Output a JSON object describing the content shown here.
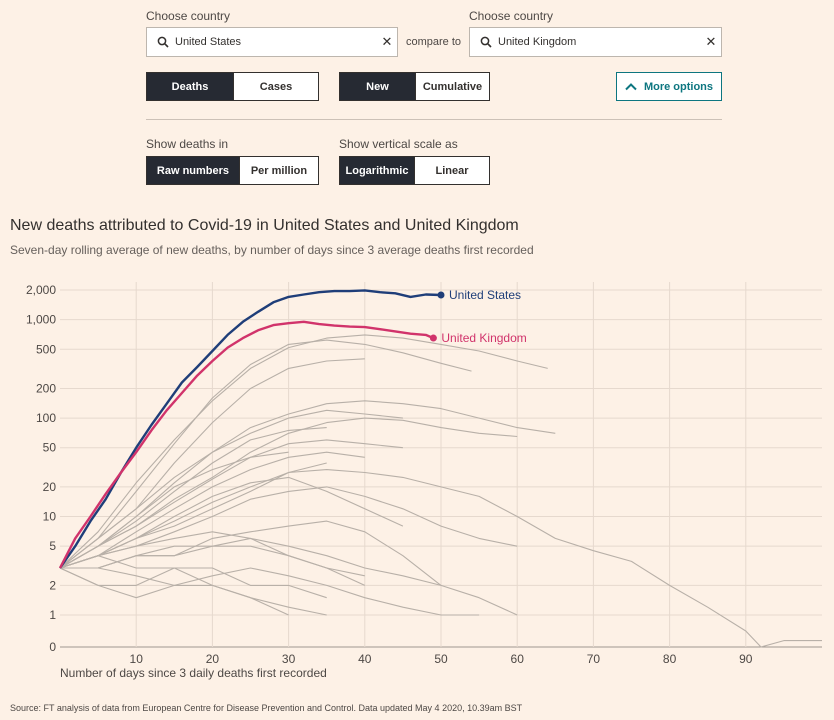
{
  "controls": {
    "choose_country_label_1": "Choose country",
    "choose_country_label_2": "Choose country",
    "country_1": "United States",
    "country_2": "United Kingdom",
    "compare_to": "compare to",
    "clear_symbol": "✕",
    "metric": {
      "options": [
        "Deaths",
        "Cases"
      ],
      "selected": "Deaths"
    },
    "mode": {
      "options": [
        "New",
        "Cumulative"
      ],
      "selected": "New"
    },
    "more_options": "More options",
    "show_deaths_in_label": "Show deaths in",
    "deaths_unit": {
      "options": [
        "Raw numbers",
        "Per million"
      ],
      "selected": "Raw numbers"
    },
    "vertical_scale_label": "Show vertical scale as",
    "scale": {
      "options": [
        "Logarithmic",
        "Linear"
      ],
      "selected": "Logarithmic"
    }
  },
  "chart_data": {
    "type": "line",
    "title": "New deaths attributed to Covid-19 in United States and United Kingdom",
    "subtitle": "Seven-day rolling average of new deaths, by number of days since 3 average deaths first recorded",
    "xlabel": "Number of days since 3 daily deaths first recorded",
    "ylabel": "",
    "xlim": [
      0,
      100
    ],
    "x_ticks": [
      10,
      20,
      30,
      40,
      50,
      60,
      70,
      80,
      90
    ],
    "y_scale": "log",
    "y_ticks": [
      {
        "value": 0,
        "label": "0"
      },
      {
        "value": 1,
        "label": "1"
      },
      {
        "value": 2,
        "label": "2"
      },
      {
        "value": 5,
        "label": "5"
      },
      {
        "value": 10,
        "label": "10"
      },
      {
        "value": 20,
        "label": "20"
      },
      {
        "value": 50,
        "label": "50"
      },
      {
        "value": 100,
        "label": "100"
      },
      {
        "value": 200,
        "label": "200"
      },
      {
        "value": 500,
        "label": "500"
      },
      {
        "value": 1000,
        "label": "1,000"
      },
      {
        "value": 2000,
        "label": "2,000"
      }
    ],
    "grid": true,
    "highlight_series": [
      {
        "name": "United States",
        "color": "#1f3e79",
        "x": [
          0,
          2,
          4,
          6,
          8,
          10,
          12,
          14,
          16,
          18,
          20,
          22,
          24,
          26,
          28,
          30,
          32,
          34,
          36,
          38,
          40,
          42,
          44,
          46,
          48,
          50
        ],
        "y": [
          3,
          5,
          9,
          15,
          28,
          50,
          85,
          140,
          230,
          330,
          480,
          700,
          950,
          1200,
          1500,
          1700,
          1800,
          1900,
          1950,
          1950,
          1980,
          1900,
          1850,
          1700,
          1800,
          1780
        ]
      },
      {
        "name": "United Kingdom",
        "color": "#d1336b",
        "x": [
          0,
          2,
          4,
          6,
          8,
          10,
          12,
          14,
          16,
          18,
          20,
          22,
          24,
          26,
          28,
          30,
          32,
          34,
          36,
          38,
          40,
          42,
          44,
          46,
          48,
          49
        ],
        "y": [
          3,
          6,
          10,
          17,
          28,
          45,
          75,
          120,
          180,
          270,
          380,
          520,
          650,
          780,
          880,
          920,
          950,
          900,
          870,
          850,
          840,
          800,
          760,
          720,
          700,
          650
        ]
      }
    ],
    "background_series_color": "#b8b0a8",
    "background_series": [
      {
        "x": [
          0,
          5,
          10,
          15,
          20,
          25,
          30,
          35,
          40,
          45,
          50,
          55,
          60,
          64
        ],
        "y": [
          3,
          7,
          22,
          60,
          150,
          320,
          520,
          650,
          700,
          650,
          560,
          480,
          380,
          320
        ]
      },
      {
        "x": [
          0,
          5,
          10,
          15,
          20,
          25,
          30,
          35,
          40,
          45,
          50,
          54
        ],
        "y": [
          3,
          6,
          18,
          55,
          160,
          350,
          560,
          620,
          560,
          460,
          360,
          300
        ]
      },
      {
        "x": [
          0,
          5,
          10,
          15,
          20,
          25,
          30,
          35,
          40,
          45,
          50,
          55,
          60,
          65
        ],
        "y": [
          3,
          5,
          10,
          22,
          45,
          80,
          110,
          140,
          150,
          140,
          125,
          100,
          80,
          70
        ]
      },
      {
        "x": [
          0,
          5,
          10,
          15,
          20,
          25,
          30,
          35,
          40,
          45,
          50,
          55,
          60
        ],
        "y": [
          3,
          5,
          8,
          15,
          25,
          45,
          70,
          90,
          100,
          95,
          80,
          70,
          65
        ]
      },
      {
        "x": [
          0,
          5,
          10,
          15,
          20,
          25,
          30,
          35,
          40
        ],
        "y": [
          3,
          6,
          12,
          35,
          90,
          200,
          320,
          380,
          400
        ]
      },
      {
        "x": [
          0,
          5,
          10,
          15,
          20,
          25,
          30,
          35,
          40,
          45,
          50,
          55,
          60,
          65,
          70,
          75,
          80,
          85,
          90,
          92,
          95,
          100
        ],
        "y": [
          3,
          4,
          6,
          8,
          12,
          18,
          28,
          30,
          28,
          25,
          20,
          16,
          10,
          6,
          4.5,
          3.5,
          2,
          1.2,
          0.5,
          0,
          0.2,
          0.2
        ]
      },
      {
        "x": [
          0,
          5,
          10,
          15,
          20,
          25,
          30,
          35,
          40,
          45,
          50,
          55,
          60
        ],
        "y": [
          3,
          4,
          5,
          7,
          10,
          15,
          18,
          20,
          16,
          12,
          8,
          6,
          5
        ]
      },
      {
        "x": [
          0,
          5,
          10,
          15,
          20,
          25,
          30,
          35,
          40,
          45,
          50,
          55,
          60
        ],
        "y": [
          3,
          3,
          4,
          4,
          6,
          7,
          8,
          9,
          7,
          4,
          2,
          1.5,
          1
        ]
      },
      {
        "x": [
          0,
          5,
          10,
          15,
          20,
          25,
          30,
          35,
          40,
          45
        ],
        "y": [
          3,
          4,
          6,
          10,
          16,
          22,
          25,
          18,
          12,
          8
        ]
      },
      {
        "x": [
          0,
          5,
          10,
          15,
          20,
          25,
          30,
          35,
          40,
          45,
          50
        ],
        "y": [
          3,
          3,
          4,
          5,
          5,
          6,
          5,
          4,
          3,
          2.5,
          2
        ]
      },
      {
        "x": [
          0,
          5,
          10,
          15,
          20,
          25,
          30,
          35,
          40,
          45,
          50,
          55
        ],
        "y": [
          3,
          2,
          1.5,
          2,
          2.5,
          3,
          2.5,
          2,
          1.5,
          1.2,
          1,
          1
        ]
      },
      {
        "x": [
          0,
          5,
          10,
          15,
          20,
          25,
          30,
          35,
          40
        ],
        "y": [
          3,
          4,
          5,
          6,
          7,
          6,
          4,
          3,
          2
        ]
      },
      {
        "x": [
          0,
          5,
          10,
          15,
          20,
          25,
          30,
          35
        ],
        "y": [
          3,
          5,
          9,
          18,
          35,
          60,
          75,
          80
        ]
      },
      {
        "x": [
          0,
          5,
          10,
          15,
          20,
          25,
          30,
          35,
          40,
          45
        ],
        "y": [
          3,
          5,
          8,
          14,
          24,
          40,
          55,
          60,
          55,
          50
        ]
      },
      {
        "x": [
          0,
          5,
          10,
          15,
          20,
          25,
          30,
          35
        ],
        "y": [
          3,
          4,
          6,
          9,
          14,
          20,
          28,
          35
        ]
      },
      {
        "x": [
          0,
          5,
          10,
          15,
          20,
          25,
          30,
          35
        ],
        "y": [
          3,
          3,
          2.5,
          2,
          2,
          1.5,
          1.2,
          1
        ]
      },
      {
        "x": [
          0,
          5,
          10,
          15,
          20,
          25,
          30,
          35,
          40
        ],
        "y": [
          3,
          4,
          7,
          12,
          20,
          30,
          40,
          45,
          40
        ]
      },
      {
        "x": [
          0,
          5,
          10,
          15,
          20,
          25,
          30,
          35,
          40
        ],
        "y": [
          3,
          3,
          4,
          4,
          5,
          5,
          4,
          3,
          2.5
        ]
      },
      {
        "x": [
          0,
          5,
          10,
          15,
          20,
          25,
          30
        ],
        "y": [
          3,
          5,
          10,
          20,
          30,
          40,
          45
        ]
      },
      {
        "x": [
          0,
          5,
          10,
          15,
          20,
          25,
          30,
          35
        ],
        "y": [
          3,
          2,
          2,
          3,
          3,
          2,
          2,
          1.5
        ]
      },
      {
        "x": [
          0,
          5,
          10,
          15,
          20,
          25,
          30
        ],
        "y": [
          3,
          4,
          3,
          3,
          2,
          1.5,
          1
        ]
      },
      {
        "x": [
          0,
          5,
          10,
          15,
          20,
          25,
          30,
          35,
          40,
          45
        ],
        "y": [
          3,
          6,
          12,
          25,
          45,
          70,
          100,
          120,
          110,
          100
        ]
      }
    ]
  },
  "source": "Source: FT analysis of data from European Centre for Disease Prevention and Control. Data updated May 4 2020, 10.39am BST"
}
